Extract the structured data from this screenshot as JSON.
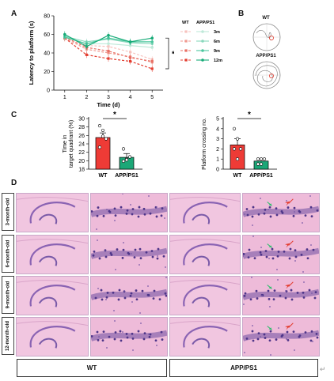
{
  "panels": {
    "a": "A",
    "b": "B",
    "c": "C",
    "d": "D"
  },
  "chart_data": [
    {
      "id": "A",
      "type": "line",
      "title": "",
      "xlabel": "Time (d)",
      "ylabel": "Latency to platform (s)",
      "x": [
        1,
        2,
        3,
        4,
        5
      ],
      "xlim": [
        0.5,
        5.5
      ],
      "ylim": [
        0,
        80
      ],
      "yticks": [
        0,
        20,
        40,
        60,
        80
      ],
      "legend": {
        "placement": "right",
        "headers": [
          "WT",
          "APP/PS1"
        ],
        "rows": [
          "3m",
          "6m",
          "9m",
          "12m"
        ]
      },
      "series": [
        {
          "group": "WT",
          "age": "3m",
          "color": "#f7c2bd",
          "values": [
            58,
            48,
            47,
            41,
            33
          ]
        },
        {
          "group": "WT",
          "age": "6m",
          "color": "#f09a90",
          "values": [
            56,
            44,
            40,
            36,
            30
          ]
        },
        {
          "group": "WT",
          "age": "9m",
          "color": "#e86f64",
          "values": [
            57,
            46,
            42,
            35,
            31
          ]
        },
        {
          "group": "WT",
          "age": "12m",
          "color": "#e33e31",
          "values": [
            56,
            38,
            34,
            31,
            23
          ]
        },
        {
          "group": "APP/PS1",
          "age": "3m",
          "color": "#bfe9d9",
          "values": [
            57,
            50,
            50,
            48,
            46
          ]
        },
        {
          "group": "APP/PS1",
          "age": "6m",
          "color": "#8ad8bd",
          "values": [
            58,
            52,
            55,
            51,
            50
          ]
        },
        {
          "group": "APP/PS1",
          "age": "9m",
          "color": "#4cc79e",
          "values": [
            57,
            50,
            56,
            52,
            52
          ]
        },
        {
          "group": "APP/PS1",
          "age": "12m",
          "color": "#17ab78",
          "values": [
            60,
            47,
            59,
            52,
            56
          ]
        }
      ],
      "annotation": "*"
    },
    {
      "id": "C-left",
      "type": "bar",
      "title": "",
      "xlabel": "",
      "ylabel": "Time in target quadrant (%)",
      "categories": [
        "WT",
        "APP/PS1"
      ],
      "values": [
        25.5,
        20.8
      ],
      "errors": [
        1.1,
        0.9
      ],
      "colors": [
        "#ee3b36",
        "#1ba777"
      ],
      "ylim": [
        18,
        30
      ],
      "yticks": [
        18,
        20,
        22,
        24,
        26,
        28,
        30
      ],
      "points": [
        [
          28.3,
          25.8,
          25.2,
          23.2,
          27.2
        ],
        [
          22.8,
          20.4,
          20.9,
          19.9,
          20.2
        ]
      ],
      "annotation": "*"
    },
    {
      "id": "C-right",
      "type": "bar",
      "title": "",
      "xlabel": "",
      "ylabel": "Platform crossing no.",
      "categories": [
        "WT",
        "APP/PS1"
      ],
      "values": [
        2.4,
        0.8
      ],
      "errors": [
        0.6,
        0.2
      ],
      "colors": [
        "#ee3b36",
        "#1ba777"
      ],
      "ylim": [
        0,
        5
      ],
      "yticks": [
        0,
        1,
        2,
        3,
        4,
        5
      ],
      "points": [
        [
          4.0,
          3.0,
          2.0,
          2.0,
          1.0
        ],
        [
          1.0,
          1.0,
          1.0,
          0.5,
          0.5
        ]
      ],
      "annotation": "*"
    }
  ],
  "panel_b": {
    "wt_label": "WT",
    "app_label": "APP/PS1"
  },
  "panel_d": {
    "rows": [
      "3-month-old",
      "6-month-old",
      "9-month-old",
      "12-month-old"
    ],
    "groups": [
      "WT",
      "APP/PS1"
    ]
  },
  "colors": {
    "wt_red": "#ee3b36",
    "app_green": "#1ba777",
    "stain_pink": "#eebbd9",
    "stain_purple": "#7a5aa8"
  }
}
